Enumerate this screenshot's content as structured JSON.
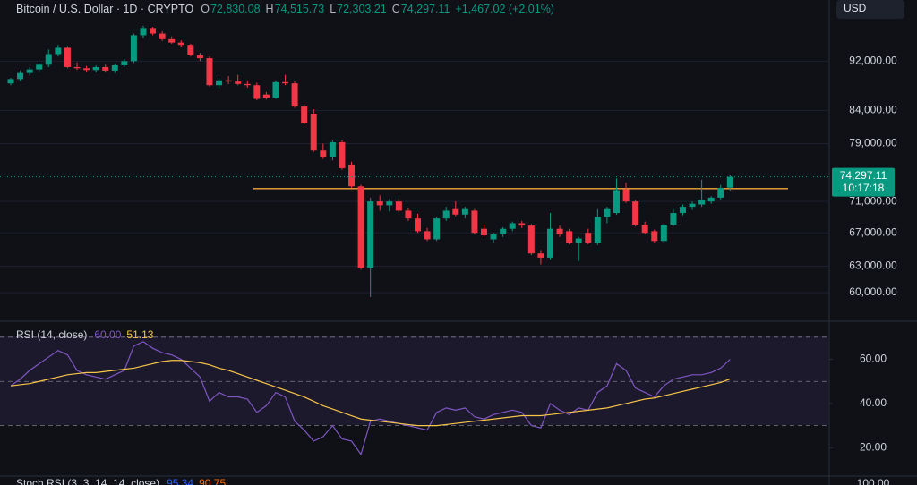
{
  "chart_data": [
    {
      "type": "candlestick",
      "title": "Bitcoin / U.S. Dollar · 1D · CRYPTO",
      "legend": [
        {
          "label": "O",
          "value": "72,830.08"
        },
        {
          "label": "H",
          "value": "74,515.73"
        },
        {
          "label": "L",
          "value": "72,303.21"
        },
        {
          "label": "C",
          "value": "74,297.11"
        }
      ],
      "change": "+1,467.02 (+2.01%)",
      "currency": "USD",
      "log_scale": true,
      "up_color": "#089981",
      "down_color": "#f23645",
      "ylim": [
        57000,
        103000
      ],
      "yticks": [
        {
          "value": 60000,
          "label": "60,000.00"
        },
        {
          "value": 63000,
          "label": "63,000.00"
        },
        {
          "value": 67000,
          "label": "67,000.00"
        },
        {
          "value": 71000,
          "label": "71,000.00"
        },
        {
          "value": 79000,
          "label": "79,000.00"
        },
        {
          "value": 84000,
          "label": "84,000.00"
        },
        {
          "value": 92000,
          "label": "92,000.00"
        }
      ],
      "last_price_label": "74,297.11",
      "countdown": "10:17:18",
      "levels": [
        72700
      ],
      "level_color": "#f7a738",
      "ohlc": [
        [
          88300,
          89200,
          88000,
          89000
        ],
        [
          89000,
          90400,
          88700,
          90000
        ],
        [
          90000,
          91000,
          89600,
          90600
        ],
        [
          90600,
          91700,
          90200,
          91400
        ],
        [
          91400,
          94000,
          91000,
          93200
        ],
        [
          93200,
          94800,
          92800,
          94300
        ],
        [
          94300,
          94600,
          90800,
          91000
        ],
        [
          91000,
          91800,
          90500,
          90800
        ],
        [
          90800,
          91200,
          90200,
          90500
        ],
        [
          90500,
          91300,
          90100,
          91000
        ],
        [
          91000,
          91400,
          90200,
          90400
        ],
        [
          90400,
          91500,
          90000,
          91300
        ],
        [
          91300,
          92400,
          91000,
          92000
        ],
        [
          92000,
          96800,
          91700,
          96500
        ],
        [
          96500,
          98200,
          96000,
          97800
        ],
        [
          97800,
          98000,
          96500,
          96800
        ],
        [
          96800,
          97200,
          95500,
          95800
        ],
        [
          95800,
          96300,
          95000,
          95200
        ],
        [
          95200,
          95600,
          94500,
          94800
        ],
        [
          94800,
          95000,
          92800,
          93000
        ],
        [
          93000,
          93400,
          92000,
          92500
        ],
        [
          92500,
          92800,
          87800,
          88000
        ],
        [
          88000,
          89200,
          87500,
          88800
        ],
        [
          88800,
          89500,
          88200,
          88600
        ],
        [
          88600,
          89700,
          88000,
          88200
        ],
        [
          88200,
          88800,
          87600,
          88000
        ],
        [
          88000,
          88400,
          85600,
          85800
        ],
        [
          86500,
          86900,
          85700,
          86000
        ],
        [
          86000,
          88800,
          85800,
          88500
        ],
        [
          88500,
          89700,
          88000,
          88300
        ],
        [
          88300,
          88600,
          84400,
          84600
        ],
        [
          84600,
          85000,
          81800,
          82000
        ],
        [
          83500,
          84200,
          77800,
          78000
        ],
        [
          78000,
          79000,
          76800,
          77000
        ],
        [
          77000,
          79500,
          76600,
          79200
        ],
        [
          79200,
          79500,
          75300,
          75500
        ],
        [
          76000,
          76400,
          72800,
          73000
        ],
        [
          73000,
          73200,
          62600,
          62800
        ],
        [
          62800,
          71500,
          59500,
          71000
        ],
        [
          71000,
          71800,
          69800,
          70500
        ],
        [
          70500,
          71300,
          69700,
          71000
        ],
        [
          71000,
          71400,
          69500,
          69800
        ],
        [
          69800,
          70200,
          68500,
          68800
        ],
        [
          68800,
          69400,
          67000,
          67200
        ],
        [
          67200,
          67600,
          66000,
          66200
        ],
        [
          66200,
          69000,
          66000,
          68800
        ],
        [
          68800,
          70300,
          68500,
          69800
        ],
        [
          70000,
          71000,
          69100,
          69300
        ],
        [
          69300,
          70300,
          68800,
          70000
        ],
        [
          69800,
          70000,
          66800,
          67000
        ],
        [
          67500,
          68000,
          66500,
          66700
        ],
        [
          66200,
          67000,
          65800,
          66800
        ],
        [
          66800,
          67700,
          66500,
          67500
        ],
        [
          67500,
          68400,
          67200,
          68200
        ],
        [
          68200,
          68500,
          67600,
          67900
        ],
        [
          67900,
          68100,
          64300,
          64500
        ],
        [
          64500,
          64900,
          63200,
          64000
        ],
        [
          64000,
          69500,
          63800,
          67500
        ],
        [
          67500,
          67900,
          66500,
          66800
        ],
        [
          67200,
          67500,
          65600,
          65800
        ],
        [
          65800,
          66500,
          63600,
          66300
        ],
        [
          67000,
          67500,
          65600,
          65800
        ],
        [
          65800,
          70000,
          65500,
          69000
        ],
        [
          69000,
          70300,
          68200,
          70000
        ],
        [
          69500,
          74100,
          69300,
          72500
        ],
        [
          72600,
          73500,
          70800,
          71000
        ],
        [
          71000,
          71200,
          67800,
          68000
        ],
        [
          68000,
          68400,
          66800,
          67000
        ],
        [
          67200,
          67400,
          65800,
          66000
        ],
        [
          66000,
          68200,
          65800,
          68000
        ],
        [
          68000,
          70000,
          67800,
          69500
        ],
        [
          69500,
          70600,
          69200,
          70300
        ],
        [
          70300,
          71000,
          69900,
          70700
        ],
        [
          70600,
          73900,
          70300,
          71200
        ],
        [
          71000,
          71700,
          70700,
          71500
        ],
        [
          71500,
          73200,
          71200,
          72800
        ],
        [
          72830.08,
          74515.73,
          72303.21,
          74297.11
        ]
      ]
    },
    {
      "type": "line",
      "title": "RSI (14, close)",
      "ylim": [
        8,
        76
      ],
      "yticks": [
        {
          "value": 20,
          "label": "20.00"
        },
        {
          "value": 40,
          "label": "40.00"
        },
        {
          "value": 60,
          "label": "60.00"
        }
      ],
      "levels": [
        30,
        50,
        70
      ],
      "series": [
        {
          "color": "#7e57c2",
          "label": "60.00",
          "values": [
            48,
            51,
            55,
            58,
            61,
            64,
            62,
            55,
            53,
            52,
            51,
            53,
            55,
            66,
            68,
            65,
            63,
            62,
            60,
            56,
            52,
            41,
            45,
            43,
            43,
            42,
            36,
            39,
            45,
            43,
            32,
            28,
            23,
            25,
            30,
            24,
            23,
            17,
            32,
            33,
            32,
            31,
            30,
            29,
            28,
            36,
            38,
            37,
            38,
            34,
            33,
            35,
            36,
            37,
            36,
            30,
            29,
            40,
            37,
            35,
            38,
            37,
            45,
            48,
            58,
            55,
            47,
            45,
            43,
            48,
            51,
            52,
            53,
            53,
            54,
            56,
            60
          ]
        },
        {
          "color": "#f7c548",
          "label": "51.13",
          "values": [
            48,
            48.5,
            49,
            50,
            51,
            52,
            53,
            53.5,
            54,
            54,
            54.5,
            55,
            55.5,
            56,
            57,
            58,
            59,
            59.5,
            59.5,
            59,
            58.5,
            57.5,
            56,
            55,
            53.5,
            52,
            50.5,
            49,
            47.5,
            46,
            44.5,
            43,
            41,
            39,
            37.5,
            36,
            34.5,
            33,
            32.5,
            32,
            31.5,
            31,
            30.5,
            30,
            30,
            30,
            30.5,
            31,
            31.5,
            32,
            32.5,
            33,
            33.5,
            34,
            34.5,
            34.5,
            34.5,
            35,
            35.5,
            36,
            36.5,
            37,
            37.5,
            38,
            39,
            40,
            41,
            42,
            42.5,
            43.5,
            44.5,
            45.5,
            46.5,
            47.5,
            48.5,
            49.5,
            51.13
          ]
        }
      ]
    }
  ],
  "stoch": {
    "title": "Stoch RSI (3, 3, 14, 14, close)",
    "values": [
      "95.34",
      "90.75"
    ],
    "top_tick": "100.00"
  }
}
